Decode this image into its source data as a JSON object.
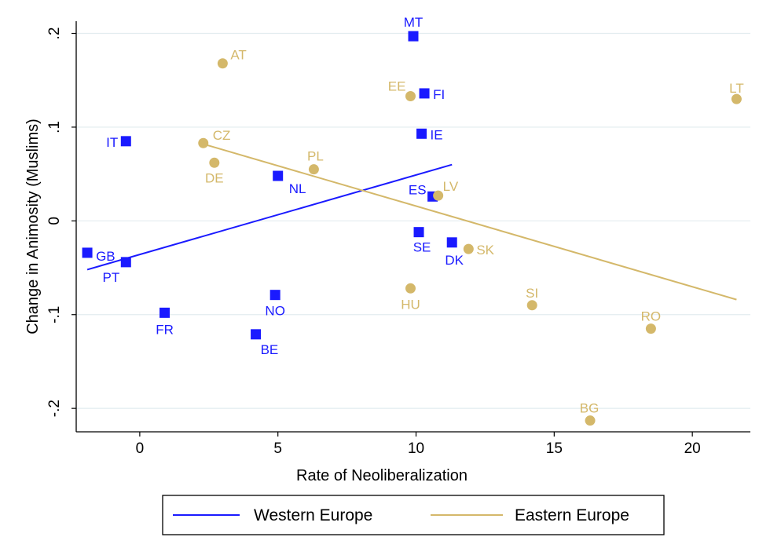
{
  "chart_data": {
    "type": "scatter",
    "title": "",
    "xlabel": "Rate of Neoliberalization",
    "ylabel": "Change in Animosity (Muslims)",
    "xlim": [
      -2.3,
      22.1
    ],
    "ylim": [
      -0.225,
      0.213
    ],
    "x_ticks": [
      {
        "value": 0,
        "label": "0"
      },
      {
        "value": 5,
        "label": "5"
      },
      {
        "value": 10,
        "label": "10"
      },
      {
        "value": 15,
        "label": "15"
      },
      {
        "value": 20,
        "label": "20"
      }
    ],
    "y_ticks": [
      {
        "value": -0.2,
        "label": "-.2"
      },
      {
        "value": -0.1,
        "label": "-.1"
      },
      {
        "value": 0,
        "label": "0"
      },
      {
        "value": 0.1,
        "label": ".1"
      },
      {
        "value": 0.2,
        "label": ".2"
      }
    ],
    "grid": "horizontal",
    "legend": {
      "placement": "bottom"
    },
    "series": [
      {
        "name": "Western Europe",
        "color": "#1a1aff",
        "marker": "square",
        "points": [
          {
            "label": "MT",
            "x": 9.9,
            "y": 0.197
          },
          {
            "label": "FI",
            "x": 10.3,
            "y": 0.136
          },
          {
            "label": "IE",
            "x": 10.2,
            "y": 0.093
          },
          {
            "label": "IT",
            "x": -0.5,
            "y": 0.085
          },
          {
            "label": "NL",
            "x": 5.0,
            "y": 0.048
          },
          {
            "label": "ES",
            "x": 10.6,
            "y": 0.026
          },
          {
            "label": "SE",
            "x": 10.1,
            "y": -0.012
          },
          {
            "label": "DK",
            "x": 11.3,
            "y": -0.023
          },
          {
            "label": "GB",
            "x": -1.9,
            "y": -0.034
          },
          {
            "label": "PT",
            "x": -0.5,
            "y": -0.044
          },
          {
            "label": "NO",
            "x": 4.9,
            "y": -0.079
          },
          {
            "label": "FR",
            "x": 0.9,
            "y": -0.098
          },
          {
            "label": "BE",
            "x": 4.2,
            "y": -0.121
          }
        ],
        "fit": {
          "x": [
            -1.9,
            11.3
          ],
          "y": [
            -0.052,
            0.06
          ]
        }
      },
      {
        "name": "Eastern Europe",
        "color": "#d4b86a",
        "marker": "circle",
        "points": [
          {
            "label": "AT",
            "x": 3.0,
            "y": 0.168
          },
          {
            "label": "EE",
            "x": 9.8,
            "y": 0.133
          },
          {
            "label": "LT",
            "x": 21.6,
            "y": 0.13
          },
          {
            "label": "CZ",
            "x": 2.3,
            "y": 0.083
          },
          {
            "label": "DE",
            "x": 2.7,
            "y": 0.062
          },
          {
            "label": "PL",
            "x": 6.3,
            "y": 0.055
          },
          {
            "label": "LV",
            "x": 10.8,
            "y": 0.027
          },
          {
            "label": "SK",
            "x": 11.9,
            "y": -0.03
          },
          {
            "label": "HU",
            "x": 9.8,
            "y": -0.072
          },
          {
            "label": "SI",
            "x": 14.2,
            "y": -0.09
          },
          {
            "label": "RO",
            "x": 18.5,
            "y": -0.115
          },
          {
            "label": "BG",
            "x": 16.3,
            "y": -0.213
          }
        ],
        "fit": {
          "x": [
            2.3,
            21.6
          ],
          "y": [
            0.082,
            -0.084
          ]
        }
      }
    ]
  }
}
